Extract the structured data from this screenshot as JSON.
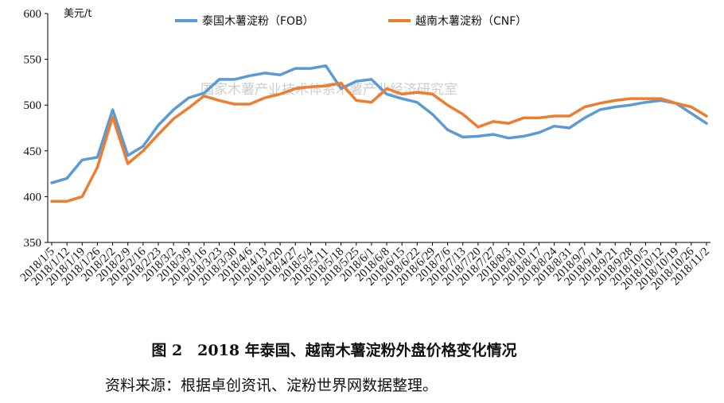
{
  "chart_data": {
    "type": "line",
    "ylabel": "美元/t",
    "ylim": [
      350,
      600
    ],
    "yticks": [
      350,
      400,
      450,
      500,
      550,
      600
    ],
    "grid": false,
    "legend_position": "top",
    "watermark": "国家木薯产业技术体系木薯产业经济研究室",
    "categories": [
      "2018/1/5",
      "2018/1/12",
      "2018/1/19",
      "2018/1/26",
      "2018/2/2",
      "2018/2/9",
      "2018/2/16",
      "2018/2/23",
      "2018/3/2",
      "2018/3/9",
      "2018/3/16",
      "2018/3/23",
      "2018/3/30",
      "2018/4/6",
      "2018/4/13",
      "2018/4/20",
      "2018/4/27",
      "2018/5/4",
      "2018/5/11",
      "2018/5/18",
      "2018/5/25",
      "2018/6/1",
      "2018/6/8",
      "2018/6/15",
      "2018/6/22",
      "2018/6/29",
      "2018/7/6",
      "2018/7/13",
      "2018/7/20",
      "2018/7/27",
      "2018/8/3",
      "2018/8/10",
      "2018/8/17",
      "2018/8/24",
      "2018/8/31",
      "2018/9/7",
      "2018/9/14",
      "2018/9/21",
      "2018/9/28",
      "2018/10/5",
      "2018/10/12",
      "2018/10/19",
      "2018/10/26",
      "2018/11/2"
    ],
    "series": [
      {
        "name": "泰国木薯淀粉（FOB）",
        "color": "#5b9bd5",
        "values": [
          415,
          420,
          440,
          443,
          495,
          445,
          455,
          478,
          495,
          508,
          513,
          528,
          528,
          532,
          535,
          533,
          540,
          540,
          543,
          518,
          526,
          528,
          512,
          507,
          503,
          490,
          473,
          465,
          466,
          468,
          464,
          466,
          470,
          477,
          475,
          486,
          495,
          498,
          500,
          503,
          505,
          502,
          491,
          480
        ]
      },
      {
        "name": "越南木薯淀粉（CNF）",
        "color": "#ed7d31",
        "values": [
          395,
          395,
          400,
          432,
          487,
          436,
          450,
          468,
          485,
          497,
          510,
          505,
          501,
          501,
          508,
          512,
          518,
          520,
          521,
          524,
          505,
          503,
          518,
          512,
          514,
          512,
          500,
          490,
          476,
          482,
          480,
          486,
          486,
          488,
          488,
          498,
          502,
          505,
          507,
          507,
          507,
          502,
          498,
          488
        ]
      }
    ]
  },
  "caption": "图 2　2018 年泰国、越南木薯淀粉外盘价格变化情况",
  "source": "资料来源：根据卓创资讯、淀粉世界网数据整理。"
}
